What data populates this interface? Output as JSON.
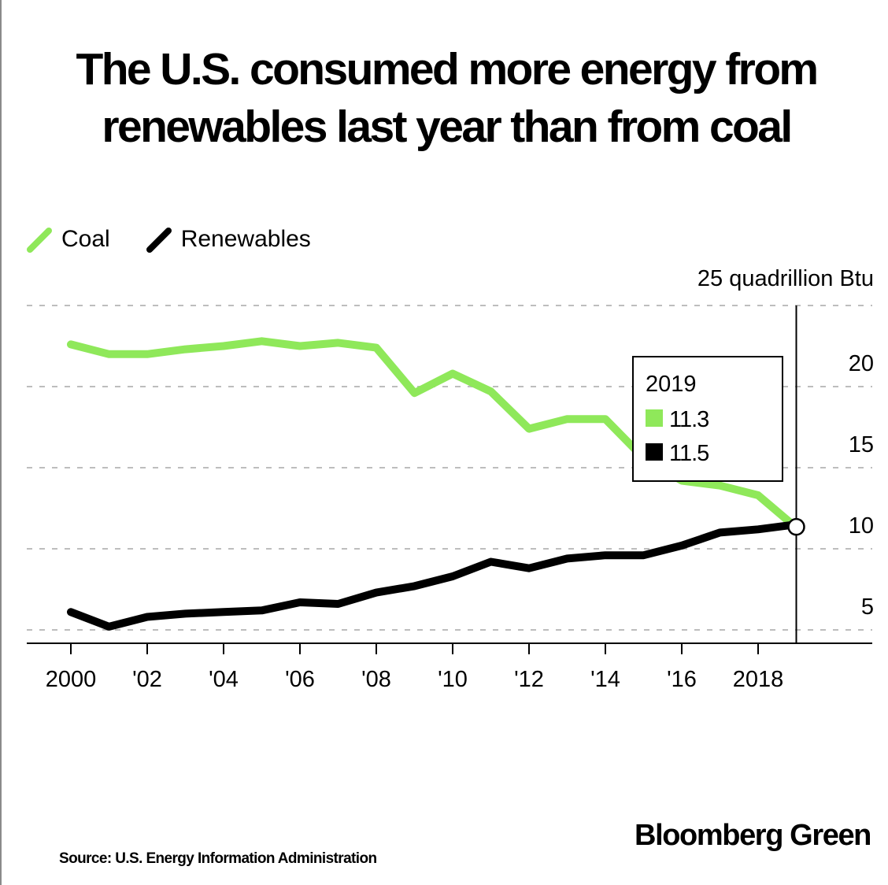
{
  "title_line1": "The U.S. consumed more energy from",
  "title_line2": "renewables last year than from coal",
  "unit_label": "25 quadrillion Btu",
  "source": "Source: U.S. Energy Information Administration",
  "brand": "Bloomberg Green",
  "colors": {
    "coal": "#8fe85a",
    "renewables": "#000000",
    "grid": "#bdbdbd"
  },
  "chart_data": {
    "type": "line",
    "x": [
      2000,
      2001,
      2002,
      2003,
      2004,
      2005,
      2006,
      2007,
      2008,
      2009,
      2010,
      2011,
      2012,
      2013,
      2014,
      2015,
      2016,
      2017,
      2018,
      2019
    ],
    "x_tick_values": [
      2000,
      2002,
      2004,
      2006,
      2008,
      2010,
      2012,
      2014,
      2016,
      2018
    ],
    "x_tick_labels": [
      "2000",
      "'02",
      "'04",
      "'06",
      "'08",
      "'10",
      "'12",
      "'14",
      "'16",
      "2018"
    ],
    "y_ticks": [
      5,
      10,
      15,
      20
    ],
    "ylim": [
      5,
      25
    ],
    "unit": "25 quadrillion Btu",
    "grid": true,
    "legend_position": "top-left",
    "series": [
      {
        "name": "Coal",
        "color": "#8fe85a",
        "values": [
          22.6,
          22.0,
          22.0,
          22.3,
          22.5,
          22.8,
          22.5,
          22.7,
          22.4,
          19.6,
          20.8,
          19.7,
          17.4,
          18.0,
          18.0,
          15.6,
          14.2,
          13.9,
          13.3,
          11.3
        ]
      },
      {
        "name": "Renewables",
        "color": "#000000",
        "values": [
          6.1,
          5.2,
          5.8,
          6.0,
          6.1,
          6.2,
          6.7,
          6.6,
          7.3,
          7.7,
          8.3,
          9.2,
          8.8,
          9.4,
          9.6,
          9.6,
          10.2,
          11.0,
          11.2,
          11.5
        ]
      }
    ],
    "annotation": {
      "year": "2019",
      "coal_value": "11.3",
      "renewables_value": "11.5"
    }
  }
}
